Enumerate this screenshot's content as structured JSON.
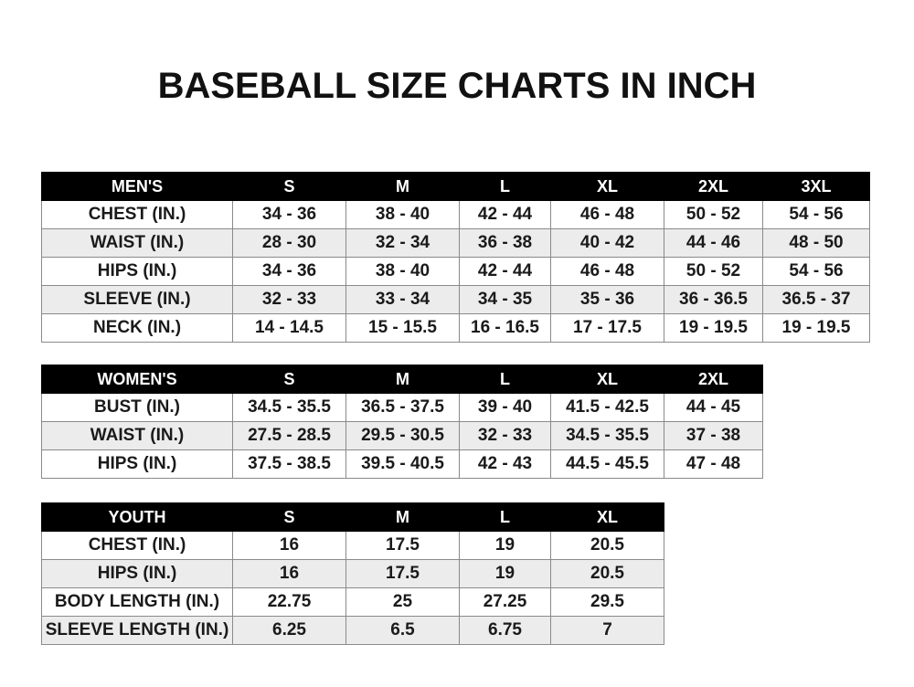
{
  "title": "BASEBALL SIZE CHARTS IN INCH",
  "tables": [
    {
      "headers": [
        "MEN'S",
        "S",
        "M",
        "L",
        "XL",
        "2XL",
        "3XL"
      ],
      "rows": [
        [
          "CHEST (IN.)",
          "34 - 36",
          "38 - 40",
          "42 - 44",
          "46 - 48",
          "50 - 52",
          "54 - 56"
        ],
        [
          "WAIST (IN.)",
          "28 - 30",
          "32 - 34",
          "36 - 38",
          "40 - 42",
          "44 - 46",
          "48 - 50"
        ],
        [
          "HIPS (IN.)",
          "34 - 36",
          "38 - 40",
          "42 - 44",
          "46 - 48",
          "50 - 52",
          "54 - 56"
        ],
        [
          "SLEEVE (IN.)",
          "32 - 33",
          "33 - 34",
          "34 - 35",
          "35 - 36",
          "36 - 36.5",
          "36.5 - 37"
        ],
        [
          "NECK (IN.)",
          "14 - 14.5",
          "15 - 15.5",
          "16 - 16.5",
          "17 - 17.5",
          "19 - 19.5",
          "19 - 19.5"
        ]
      ]
    },
    {
      "headers": [
        "WOMEN'S",
        "S",
        "M",
        "L",
        "XL",
        "2XL"
      ],
      "rows": [
        [
          "BUST (IN.)",
          "34.5 - 35.5",
          "36.5 - 37.5",
          "39 - 40",
          "41.5 - 42.5",
          "44 - 45"
        ],
        [
          "WAIST (IN.)",
          "27.5 - 28.5",
          "29.5 - 30.5",
          "32 - 33",
          "34.5 - 35.5",
          "37 - 38"
        ],
        [
          "HIPS (IN.)",
          "37.5 - 38.5",
          "39.5 - 40.5",
          "42 - 43",
          "44.5 - 45.5",
          "47 - 48"
        ]
      ]
    },
    {
      "headers": [
        "YOUTH",
        "S",
        "M",
        "L",
        "XL"
      ],
      "rows": [
        [
          "CHEST (IN.)",
          "16",
          "17.5",
          "19",
          "20.5"
        ],
        [
          "HIPS (IN.)",
          "16",
          "17.5",
          "19",
          "20.5"
        ],
        [
          "BODY LENGTH (IN.)",
          "22.75",
          "25",
          "27.25",
          "29.5"
        ],
        [
          "SLEEVE LENGTH (IN.)",
          "6.25",
          "6.5",
          "6.75",
          "7"
        ]
      ]
    }
  ]
}
